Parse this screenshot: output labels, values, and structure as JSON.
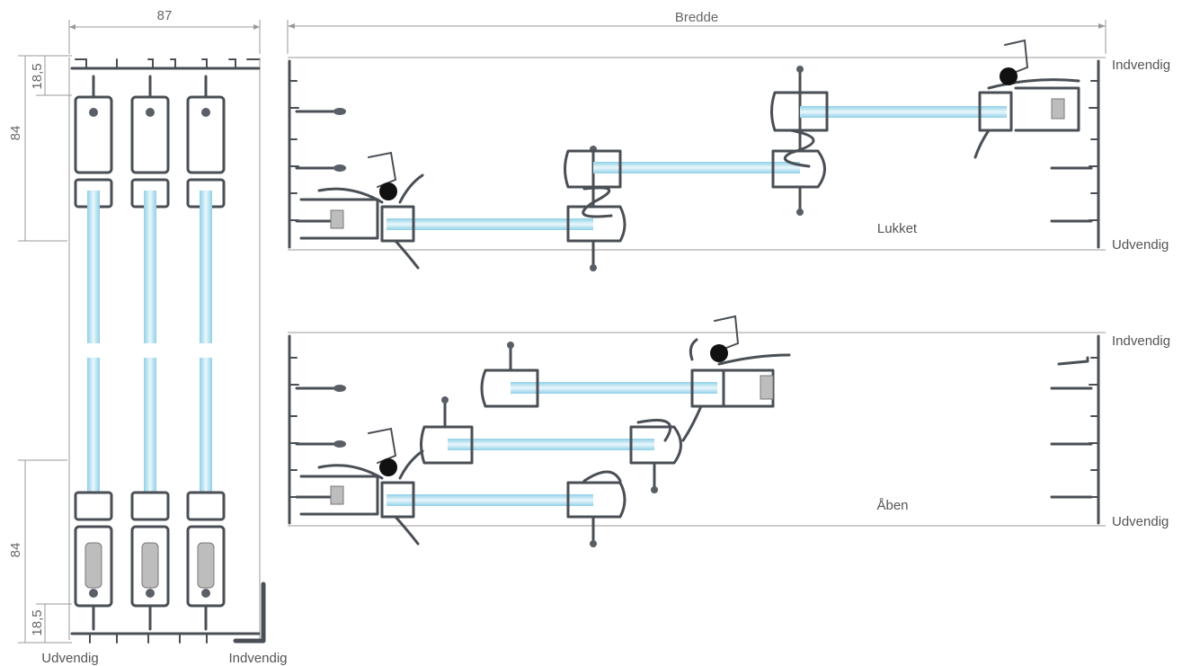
{
  "labels": {
    "width_top": "87",
    "total_width": "Bredde",
    "dim_top_small": "18,5",
    "dim_top_large": "84",
    "dim_bottom_large": "84",
    "dim_bottom_small": "18,5",
    "left_bottom_outside": "Udvendig",
    "left_bottom_inside": "Indvendig",
    "closed_inside": "Indvendig",
    "closed_outside": "Udvendig",
    "closed_state": "Lukket",
    "open_inside": "Indvendig",
    "open_outside": "Udvendig",
    "open_state": "Åben"
  },
  "colors": {
    "profile": "#4a4f55",
    "glass_light": "#e8f6fb",
    "glass_mid": "#8fd0e6",
    "seal": "#bdbdbd",
    "handle": "#111111",
    "dimension": "#9a9a9a"
  }
}
